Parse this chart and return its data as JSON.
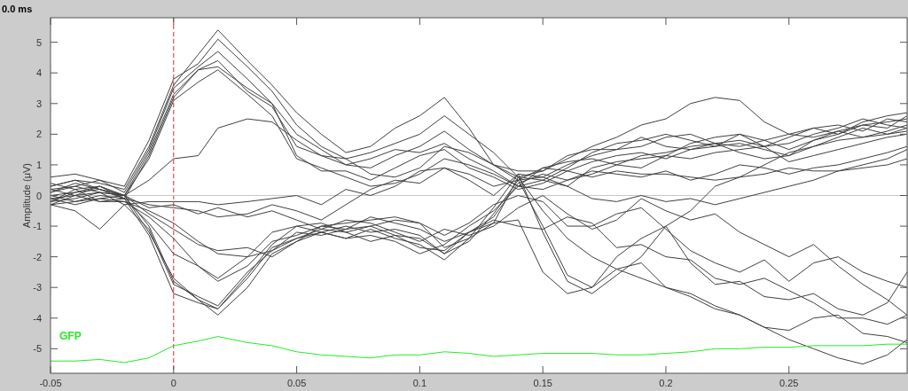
{
  "chart_data": {
    "type": "line",
    "title": "0.0 ms",
    "ylabel": "Amplitude (μV)",
    "x": [
      -0.05,
      -0.04,
      -0.03,
      -0.02,
      -0.01,
      0,
      0.01,
      0.018,
      0.03,
      0.04,
      0.05,
      0.06,
      0.07,
      0.08,
      0.09,
      0.1,
      0.11,
      0.12,
      0.13,
      0.14,
      0.15,
      0.16,
      0.17,
      0.18,
      0.19,
      0.2,
      0.21,
      0.22,
      0.23,
      0.24,
      0.25,
      0.26,
      0.27,
      0.28,
      0.29,
      0.298
    ],
    "xlim": [
      -0.05,
      0.298
    ],
    "xticks": [
      -0.05,
      0,
      0.05,
      0.1,
      0.15,
      0.2,
      0.25
    ],
    "ylim": [
      -5.8,
      5.8
    ],
    "yticks": [
      -5,
      -4,
      -3,
      -2,
      -1,
      0,
      1,
      2,
      3,
      4,
      5
    ],
    "ref_lines": [
      {
        "axis": "x",
        "value": 0,
        "color": "#e8202a",
        "line_style": "dashed"
      },
      {
        "axis": "y",
        "value": 0,
        "color": "#c8c8c8",
        "line_style": "solid"
      }
    ],
    "series": [
      {
        "color": "#404040",
        "values": [
          0.3,
          0.5,
          0.4,
          0.2,
          1.6,
          3.6,
          4.6,
          5.4,
          4.4,
          3.6,
          2.7,
          2.0,
          1.4,
          1.6,
          2.2,
          2.6,
          3.2,
          2.2,
          1.0,
          0.6,
          0.8,
          1.2,
          1.6,
          1.9,
          2.3,
          2.5,
          3.0,
          3.2,
          3.1,
          2.4,
          2.0,
          2.2,
          2.0,
          2.3,
          2.4,
          2.5
        ]
      },
      {
        "color": "#404040",
        "values": [
          0.6,
          0.7,
          0.5,
          0.3,
          1.8,
          3.8,
          4.3,
          5.1,
          4.2,
          3.4,
          2.3,
          1.6,
          1.2,
          1.4,
          1.7,
          2.0,
          2.6,
          2.0,
          1.4,
          0.6,
          0.5,
          0.9,
          1.4,
          1.7,
          1.8,
          2.0,
          1.8,
          1.6,
          2.0,
          1.8,
          1.5,
          1.8,
          2.0,
          2.4,
          2.6,
          2.7
        ]
      },
      {
        "color": "#404040",
        "values": [
          0.2,
          0.3,
          0.5,
          0.1,
          1.5,
          3.5,
          4.2,
          4.7,
          3.8,
          3.0,
          2.0,
          1.5,
          1.0,
          0.9,
          1.3,
          1.6,
          2.1,
          1.5,
          1.0,
          0.8,
          0.8,
          1.3,
          1.5,
          1.5,
          1.6,
          1.9,
          2.0,
          1.7,
          1.8,
          1.6,
          1.7,
          2.0,
          2.2,
          2.5,
          2.3,
          2.2
        ]
      },
      {
        "color": "#404040",
        "values": [
          0.4,
          0.2,
          0.3,
          0.0,
          1.4,
          3.3,
          4.1,
          4.4,
          3.4,
          2.9,
          1.6,
          1.3,
          1.2,
          0.7,
          0.6,
          0.9,
          1.6,
          1.4,
          1.0,
          0.5,
          0.6,
          1.0,
          1.3,
          1.5,
          1.9,
          1.6,
          1.5,
          1.6,
          1.7,
          1.5,
          1.3,
          1.6,
          1.9,
          2.2,
          2.0,
          2.1
        ]
      },
      {
        "color": "#404040",
        "values": [
          0.1,
          0.4,
          0.2,
          -0.1,
          1.3,
          3.2,
          4.1,
          4.2,
          3.5,
          3.0,
          1.3,
          0.8,
          0.8,
          0.5,
          0.9,
          1.3,
          1.5,
          0.9,
          0.6,
          0.2,
          0.4,
          0.8,
          1.1,
          1.3,
          1.4,
          1.2,
          1.5,
          1.7,
          1.4,
          1.2,
          1.3,
          1.8,
          2.1,
          1.9,
          2.1,
          2.3
        ]
      },
      {
        "color": "#404040",
        "values": [
          -0.2,
          0.1,
          0.3,
          0.0,
          1.2,
          3.1,
          3.7,
          4.1,
          3.3,
          2.6,
          1.2,
          0.9,
          0.6,
          0.3,
          0.4,
          0.7,
          1.2,
          1.0,
          0.7,
          0.3,
          0.9,
          1.1,
          1.2,
          1.0,
          0.9,
          1.3,
          1.2,
          1.4,
          1.5,
          1.6,
          1.1,
          1.3,
          1.5,
          1.7,
          1.9,
          2.0
        ]
      },
      {
        "color": "#404040",
        "values": [
          0.3,
          0.5,
          0.2,
          0.0,
          0.5,
          1.2,
          1.3,
          2.2,
          2.5,
          2.4,
          1.8,
          1.3,
          1.0,
          1.2,
          1.5,
          1.4,
          1.7,
          1.2,
          0.8,
          0.3,
          0.2,
          0.5,
          0.8,
          0.7,
          0.6,
          0.8,
          0.5,
          0.7,
          1.0,
          0.9,
          0.7,
          0.9,
          1.0,
          1.2,
          1.4,
          1.6
        ]
      },
      {
        "color": "#404040",
        "values": [
          -0.2,
          -0.1,
          0.1,
          -0.3,
          -0.2,
          -0.2,
          -0.2,
          -0.3,
          -0.2,
          -0.1,
          0.0,
          -0.3,
          0.2,
          0.0,
          0.3,
          0.8,
          0.9,
          0.5,
          0.0,
          0.7,
          0.6,
          0.3,
          -0.1,
          -0.2,
          0.0,
          -0.2,
          -0.1,
          -0.3,
          -0.1,
          0.1,
          0.3,
          0.5,
          0.8,
          1.0,
          1.2,
          1.5
        ]
      },
      {
        "color": "#404040",
        "values": [
          -0.3,
          -0.2,
          0.0,
          -0.1,
          -0.3,
          -0.4,
          -0.5,
          -0.7,
          -0.6,
          -0.3,
          -0.5,
          -0.8,
          -0.3,
          0.2,
          0.5,
          0.4,
          0.9,
          0.7,
          0.3,
          0.5,
          0.9,
          0.8,
          0.6,
          0.8,
          0.7,
          0.7,
          0.6,
          0.5,
          0.6,
          0.7,
          0.9,
          0.8,
          0.8,
          0.9,
          1.0,
          1.2
        ]
      },
      {
        "color": "#404040",
        "values": [
          -0.1,
          -0.3,
          -0.1,
          0.0,
          -1.2,
          -2.7,
          -3.4,
          -3.9,
          -3.0,
          -1.9,
          -1.5,
          -1.2,
          -1.4,
          -1.3,
          -1.5,
          -1.9,
          -1.6,
          -1.0,
          -0.5,
          0.3,
          0.5,
          0.3,
          0.9,
          1.1,
          1.2,
          1.3,
          1.7,
          1.9,
          2.0,
          1.6,
          1.9,
          2.2,
          2.3,
          2.1,
          2.5,
          2.4
        ]
      },
      {
        "color": "#404040",
        "values": [
          0.0,
          0.1,
          0.2,
          0.0,
          -1.0,
          -2.8,
          -3.4,
          -3.7,
          -2.7,
          -1.7,
          -1.4,
          -1.1,
          -1.2,
          -1.5,
          -1.3,
          -1.7,
          -1.8,
          -1.2,
          -0.7,
          0.4,
          0.7,
          0.5,
          0.7,
          1.0,
          1.3,
          1.4,
          1.6,
          1.7,
          1.6,
          1.8,
          2.0,
          1.9,
          2.1,
          2.3,
          2.2,
          2.6
        ]
      },
      {
        "color": "#404040",
        "values": [
          -0.3,
          -0.5,
          -1.1,
          -0.3,
          -1.1,
          -2.9,
          -3.3,
          -3.6,
          -2.5,
          -1.8,
          -1.2,
          -1.3,
          -1.1,
          -1.0,
          -1.3,
          -1.4,
          -1.9,
          -1.5,
          -0.6,
          0.5,
          -1.0,
          -2.6,
          -3.0,
          -2.0,
          -1.4,
          -1.0,
          -0.5,
          0.3,
          0.6,
          1.0,
          1.4,
          1.6,
          1.8,
          1.9,
          2.0,
          2.2
        ]
      },
      {
        "color": "#404040",
        "values": [
          -0.2,
          0.2,
          -0.2,
          -0.1,
          -1.3,
          -3.2,
          -3.5,
          -3.7,
          -2.6,
          -1.6,
          -1.0,
          -0.9,
          -1.2,
          -1.0,
          -0.8,
          -0.9,
          -1.7,
          -1.4,
          -0.4,
          0.7,
          -1.2,
          -2.8,
          -3.2,
          -2.6,
          -2.0,
          -1.0,
          -2.2,
          -2.9,
          -2.8,
          -3.3,
          -3.4,
          -3.2,
          -3.7,
          -3.9,
          -3.5,
          -2.5
        ]
      },
      {
        "color": "#404040",
        "values": [
          0.2,
          0.0,
          0.3,
          -0.1,
          -0.9,
          -1.9,
          -2.3,
          -2.8,
          -2.3,
          -1.5,
          -1.3,
          -1.0,
          -1.1,
          -0.7,
          -0.9,
          -1.1,
          -1.5,
          -1.2,
          -0.9,
          0.6,
          -0.5,
          -1.4,
          -2.0,
          -2.4,
          -2.7,
          -3.0,
          -3.2,
          -3.6,
          -3.9,
          -4.3,
          -4.4,
          -4.0,
          -3.9,
          -4.5,
          -4.6,
          -4.8
        ]
      },
      {
        "color": "#404040",
        "values": [
          0.0,
          -0.2,
          -0.1,
          -0.2,
          -0.7,
          -1.4,
          -2.3,
          -2.7,
          -2.0,
          -1.2,
          -1.0,
          -1.2,
          -1.4,
          -1.1,
          -1.4,
          -1.6,
          -2.1,
          -1.4,
          -0.9,
          -0.8,
          -2.5,
          -3.2,
          -3.0,
          -2.4,
          -2.2,
          -3.0,
          -3.3,
          -3.7,
          -3.9,
          -4.3,
          -4.7,
          -5.0,
          -5.3,
          -5.5,
          -5.2,
          -4.7
        ]
      },
      {
        "color": "#404040",
        "values": [
          -0.3,
          0.0,
          -0.2,
          -0.2,
          -0.5,
          -0.9,
          -1.5,
          -1.9,
          -2.0,
          -1.8,
          -1.4,
          -1.2,
          -1.0,
          -1.2,
          -1.1,
          -1.3,
          -1.9,
          -1.2,
          -0.8,
          -1.0,
          -1.1,
          -0.7,
          -0.9,
          -1.7,
          -1.6,
          -2.0,
          -2.1,
          -2.7,
          -2.9,
          -2.7,
          -3.1,
          -3.5,
          -4.0,
          -4.0,
          -4.2,
          -3.9
        ]
      },
      {
        "color": "#404040",
        "values": [
          0.1,
          0.3,
          0.1,
          0.0,
          -0.6,
          -1.1,
          -1.6,
          -1.8,
          -1.7,
          -2.0,
          -1.5,
          -1.0,
          -0.9,
          -0.8,
          -0.7,
          -0.9,
          -1.3,
          -0.9,
          -0.3,
          0.0,
          -0.2,
          -1.0,
          -1.0,
          -0.6,
          -0.4,
          -1.1,
          -1.8,
          -2.2,
          -2.5,
          -2.1,
          -2.8,
          -2.2,
          -2.0,
          -2.5,
          -2.8,
          -3.0
        ]
      },
      {
        "color": "#404040",
        "values": [
          -0.1,
          0.0,
          0.1,
          0.0,
          -0.4,
          -0.3,
          -0.6,
          -0.4,
          -0.7,
          -0.5,
          -0.8,
          -1.1,
          -0.8,
          -0.9,
          -1.2,
          -1.5,
          -1.1,
          -1.3,
          -1.0,
          -0.4,
          0.0,
          -0.6,
          -1.1,
          -0.8,
          -0.1,
          -0.5,
          -0.8,
          -0.6,
          -1.2,
          -1.6,
          -2.0,
          -1.6,
          -2.3,
          -2.9,
          -3.4,
          -3.9
        ]
      },
      {
        "name": "GFP",
        "color": "#22ee22",
        "values": [
          -5.4,
          -5.4,
          -5.35,
          -5.45,
          -5.3,
          -4.9,
          -4.75,
          -4.6,
          -4.8,
          -4.9,
          -5.1,
          -5.2,
          -5.25,
          -5.3,
          -5.2,
          -5.2,
          -5.1,
          -5.15,
          -5.25,
          -5.2,
          -5.15,
          -5.15,
          -5.15,
          -5.2,
          -5.2,
          -5.15,
          -5.1,
          -5.0,
          -5.0,
          -4.95,
          -4.95,
          -4.9,
          -4.9,
          -4.9,
          -4.85,
          -4.85
        ]
      }
    ]
  }
}
